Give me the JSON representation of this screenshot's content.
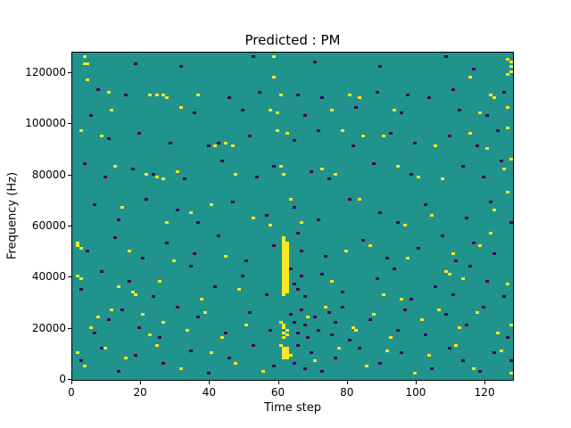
{
  "chart_data": {
    "type": "heatmap",
    "title": "Predicted : PM",
    "xlabel": "Time step",
    "ylabel": "Frequency (Hz)",
    "x_bins": 128,
    "y_bins": 128,
    "hz_per_bin": 1000,
    "xlim": [
      0,
      128
    ],
    "ylim": [
      0,
      128000
    ],
    "x_ticks": [
      0,
      20,
      40,
      60,
      80,
      100,
      120
    ],
    "y_ticks": [
      0,
      20000,
      40000,
      60000,
      80000,
      100000,
      120000
    ],
    "grid": false,
    "legend": "none",
    "colors": {
      "background": "#20938c",
      "high": "#fde725",
      "low": "#440154",
      "spine": "#000000"
    },
    "points_format": "[time_bin, frequency_bin], frequency = bin * 1000 Hz",
    "points_high": [
      [
        3,
        126
      ],
      [
        3,
        123
      ],
      [
        4,
        123
      ],
      [
        58,
        126
      ],
      [
        126,
        125
      ],
      [
        127,
        124
      ],
      [
        127,
        122
      ],
      [
        127,
        120
      ],
      [
        126,
        119
      ],
      [
        115,
        118
      ],
      [
        58,
        118
      ],
      [
        4,
        117
      ],
      [
        10,
        112
      ],
      [
        22,
        111
      ],
      [
        24,
        111
      ],
      [
        26,
        111
      ],
      [
        27,
        110
      ],
      [
        36,
        111
      ],
      [
        60,
        111
      ],
      [
        80,
        111
      ],
      [
        83,
        110
      ],
      [
        121,
        111
      ],
      [
        122,
        110
      ],
      [
        11,
        105
      ],
      [
        31,
        106
      ],
      [
        57,
        105
      ],
      [
        59,
        104
      ],
      [
        75,
        105
      ],
      [
        93,
        105
      ],
      [
        118,
        104
      ],
      [
        126,
        106
      ],
      [
        2,
        97
      ],
      [
        8,
        95
      ],
      [
        41,
        91
      ],
      [
        44,
        92
      ],
      [
        46,
        91
      ],
      [
        59,
        97
      ],
      [
        62,
        96
      ],
      [
        78,
        97
      ],
      [
        84,
        95
      ],
      [
        90,
        95
      ],
      [
        105,
        91
      ],
      [
        115,
        96
      ],
      [
        120,
        90
      ],
      [
        126,
        98
      ],
      [
        12,
        83
      ],
      [
        21,
        80
      ],
      [
        24,
        79
      ],
      [
        26,
        78
      ],
      [
        30,
        81
      ],
      [
        47,
        80
      ],
      [
        60,
        83
      ],
      [
        61,
        80
      ],
      [
        72,
        82
      ],
      [
        76,
        80
      ],
      [
        94,
        83
      ],
      [
        100,
        79
      ],
      [
        107,
        78
      ],
      [
        125,
        82
      ],
      [
        127,
        86
      ],
      [
        14,
        67
      ],
      [
        27,
        61
      ],
      [
        34,
        65
      ],
      [
        40,
        68
      ],
      [
        52,
        63
      ],
      [
        57,
        60
      ],
      [
        63,
        70
      ],
      [
        66,
        61
      ],
      [
        83,
        70
      ],
      [
        96,
        60
      ],
      [
        104,
        64
      ],
      [
        122,
        66
      ],
      [
        126,
        73
      ],
      [
        1,
        53
      ],
      [
        1,
        52
      ],
      [
        2,
        51
      ],
      [
        16,
        50
      ],
      [
        29,
        46
      ],
      [
        44,
        48
      ],
      [
        79,
        50
      ],
      [
        86,
        52
      ],
      [
        97,
        47
      ],
      [
        110,
        49
      ],
      [
        118,
        52
      ],
      [
        121,
        57
      ],
      [
        61,
        55
      ],
      [
        61,
        54
      ],
      [
        61,
        53
      ],
      [
        62,
        53
      ],
      [
        61,
        52
      ],
      [
        62,
        52
      ],
      [
        61,
        51
      ],
      [
        62,
        51
      ],
      [
        61,
        50
      ],
      [
        62,
        50
      ],
      [
        61,
        49
      ],
      [
        62,
        49
      ],
      [
        61,
        48
      ],
      [
        62,
        48
      ],
      [
        61,
        47
      ],
      [
        62,
        47
      ],
      [
        61,
        46
      ],
      [
        62,
        46
      ],
      [
        61,
        45
      ],
      [
        62,
        45
      ],
      [
        61,
        44
      ],
      [
        62,
        44
      ],
      [
        61,
        43
      ],
      [
        62,
        43
      ],
      [
        61,
        42
      ],
      [
        62,
        42
      ],
      [
        61,
        41
      ],
      [
        62,
        41
      ],
      [
        61,
        40
      ],
      [
        62,
        40
      ],
      [
        61,
        39
      ],
      [
        62,
        39
      ],
      [
        61,
        38
      ],
      [
        62,
        38
      ],
      [
        61,
        37
      ],
      [
        62,
        37
      ],
      [
        61,
        36
      ],
      [
        62,
        36
      ],
      [
        61,
        35
      ],
      [
        62,
        35
      ],
      [
        61,
        34
      ],
      [
        62,
        34
      ],
      [
        61,
        33
      ],
      [
        1,
        40
      ],
      [
        2,
        39
      ],
      [
        13,
        36
      ],
      [
        17,
        34
      ],
      [
        18,
        33
      ],
      [
        25,
        38
      ],
      [
        37,
        31
      ],
      [
        48,
        35
      ],
      [
        75,
        38
      ],
      [
        90,
        33
      ],
      [
        95,
        31
      ],
      [
        108,
        42
      ],
      [
        109,
        41
      ],
      [
        113,
        39
      ],
      [
        126,
        37
      ],
      [
        5,
        20
      ],
      [
        7,
        24
      ],
      [
        11,
        27
      ],
      [
        20,
        25
      ],
      [
        22,
        17
      ],
      [
        26,
        22
      ],
      [
        33,
        19
      ],
      [
        38,
        26
      ],
      [
        43,
        16
      ],
      [
        50,
        21
      ],
      [
        68,
        24
      ],
      [
        73,
        28
      ],
      [
        81,
        20
      ],
      [
        82,
        19
      ],
      [
        87,
        25
      ],
      [
        92,
        16
      ],
      [
        101,
        23
      ],
      [
        106,
        27
      ],
      [
        112,
        20
      ],
      [
        117,
        26
      ],
      [
        123,
        18
      ],
      [
        127,
        21
      ],
      [
        60,
        22
      ],
      [
        61,
        21
      ],
      [
        61,
        20
      ],
      [
        62,
        19
      ],
      [
        61,
        18
      ],
      [
        62,
        17
      ],
      [
        61,
        16
      ],
      [
        1,
        10
      ],
      [
        3,
        5
      ],
      [
        9,
        12
      ],
      [
        15,
        8
      ],
      [
        24,
        13
      ],
      [
        31,
        4
      ],
      [
        40,
        10
      ],
      [
        47,
        6
      ],
      [
        55,
        3
      ],
      [
        70,
        7
      ],
      [
        77,
        12
      ],
      [
        85,
        5
      ],
      [
        91,
        11
      ],
      [
        99,
        2
      ],
      [
        103,
        9
      ],
      [
        111,
        13
      ],
      [
        116,
        4
      ],
      [
        124,
        11
      ],
      [
        127,
        2
      ],
      [
        60,
        13
      ],
      [
        61,
        12
      ],
      [
        62,
        12
      ],
      [
        61,
        11
      ],
      [
        62,
        11
      ],
      [
        61,
        10
      ],
      [
        62,
        10
      ],
      [
        61,
        9
      ],
      [
        62,
        9
      ],
      [
        61,
        8
      ],
      [
        62,
        8
      ],
      [
        63,
        9
      ]
    ],
    "points_low": [
      [
        18,
        123
      ],
      [
        31,
        122
      ],
      [
        52,
        126
      ],
      [
        70,
        124
      ],
      [
        89,
        122
      ],
      [
        108,
        126
      ],
      [
        116,
        121
      ],
      [
        7,
        113
      ],
      [
        15,
        111
      ],
      [
        45,
        110
      ],
      [
        54,
        112
      ],
      [
        65,
        111
      ],
      [
        72,
        110
      ],
      [
        88,
        112
      ],
      [
        97,
        111
      ],
      [
        103,
        110
      ],
      [
        110,
        113
      ],
      [
        125,
        112
      ],
      [
        5,
        103
      ],
      [
        35,
        104
      ],
      [
        49,
        105
      ],
      [
        67,
        103
      ],
      [
        82,
        106
      ],
      [
        95,
        104
      ],
      [
        112,
        105
      ],
      [
        120,
        103
      ],
      [
        10,
        94
      ],
      [
        19,
        96
      ],
      [
        28,
        92
      ],
      [
        39,
        91
      ],
      [
        42,
        92
      ],
      [
        51,
        95
      ],
      [
        64,
        93
      ],
      [
        71,
        97
      ],
      [
        81,
        91
      ],
      [
        92,
        96
      ],
      [
        99,
        92
      ],
      [
        109,
        95
      ],
      [
        117,
        91
      ],
      [
        123,
        97
      ],
      [
        3,
        84
      ],
      [
        9,
        79
      ],
      [
        17,
        82
      ],
      [
        23,
        80
      ],
      [
        32,
        78
      ],
      [
        43,
        85
      ],
      [
        53,
        79
      ],
      [
        58,
        83
      ],
      [
        69,
        81
      ],
      [
        74,
        78
      ],
      [
        87,
        84
      ],
      [
        98,
        80
      ],
      [
        113,
        83
      ],
      [
        119,
        79
      ],
      [
        124,
        85
      ],
      [
        6,
        68
      ],
      [
        13,
        62
      ],
      [
        21,
        70
      ],
      [
        30,
        66
      ],
      [
        36,
        61
      ],
      [
        46,
        69
      ],
      [
        56,
        64
      ],
      [
        64,
        67
      ],
      [
        71,
        62
      ],
      [
        80,
        70
      ],
      [
        89,
        65
      ],
      [
        94,
        61
      ],
      [
        102,
        68
      ],
      [
        114,
        63
      ],
      [
        121,
        69
      ],
      [
        127,
        61
      ],
      [
        4,
        50
      ],
      [
        12,
        55
      ],
      [
        20,
        47
      ],
      [
        27,
        53
      ],
      [
        35,
        49
      ],
      [
        42,
        56
      ],
      [
        50,
        46
      ],
      [
        58,
        52
      ],
      [
        65,
        57
      ],
      [
        66,
        50
      ],
      [
        73,
        48
      ],
      [
        84,
        54
      ],
      [
        91,
        47
      ],
      [
        100,
        51
      ],
      [
        107,
        56
      ],
      [
        111,
        46
      ],
      [
        116,
        53
      ],
      [
        122,
        49
      ],
      [
        2,
        35
      ],
      [
        8,
        42
      ],
      [
        16,
        38
      ],
      [
        23,
        32
      ],
      [
        34,
        44
      ],
      [
        41,
        36
      ],
      [
        49,
        40
      ],
      [
        56,
        33
      ],
      [
        63,
        43
      ],
      [
        64,
        37
      ],
      [
        65,
        35
      ],
      [
        66,
        40
      ],
      [
        67,
        32
      ],
      [
        72,
        41
      ],
      [
        78,
        34
      ],
      [
        88,
        39
      ],
      [
        93,
        43
      ],
      [
        98,
        31
      ],
      [
        105,
        36
      ],
      [
        110,
        33
      ],
      [
        115,
        44
      ],
      [
        120,
        38
      ],
      [
        125,
        32
      ],
      [
        6,
        18
      ],
      [
        10,
        23
      ],
      [
        14,
        27
      ],
      [
        19,
        20
      ],
      [
        25,
        16
      ],
      [
        30,
        28
      ],
      [
        36,
        24
      ],
      [
        44,
        18
      ],
      [
        51,
        26
      ],
      [
        57,
        19
      ],
      [
        63,
        25
      ],
      [
        64,
        22
      ],
      [
        65,
        18
      ],
      [
        66,
        27
      ],
      [
        67,
        21
      ],
      [
        68,
        16
      ],
      [
        70,
        24
      ],
      [
        71,
        19
      ],
      [
        74,
        26
      ],
      [
        75,
        17
      ],
      [
        76,
        22
      ],
      [
        78,
        28
      ],
      [
        80,
        15
      ],
      [
        86,
        23
      ],
      [
        94,
        19
      ],
      [
        96,
        27
      ],
      [
        102,
        17
      ],
      [
        108,
        25
      ],
      [
        114,
        21
      ],
      [
        119,
        28
      ],
      [
        126,
        16
      ],
      [
        2,
        7
      ],
      [
        8,
        12
      ],
      [
        13,
        3
      ],
      [
        18,
        9
      ],
      [
        26,
        6
      ],
      [
        34,
        11
      ],
      [
        39,
        2
      ],
      [
        45,
        8
      ],
      [
        52,
        13
      ],
      [
        58,
        5
      ],
      [
        64,
        6
      ],
      [
        65,
        13
      ],
      [
        67,
        4
      ],
      [
        69,
        10
      ],
      [
        72,
        3
      ],
      [
        76,
        8
      ],
      [
        83,
        12
      ],
      [
        89,
        6
      ],
      [
        95,
        10
      ],
      [
        104,
        4
      ],
      [
        109,
        12
      ],
      [
        113,
        7
      ],
      [
        118,
        3
      ],
      [
        122,
        10
      ],
      [
        127,
        7
      ]
    ]
  }
}
